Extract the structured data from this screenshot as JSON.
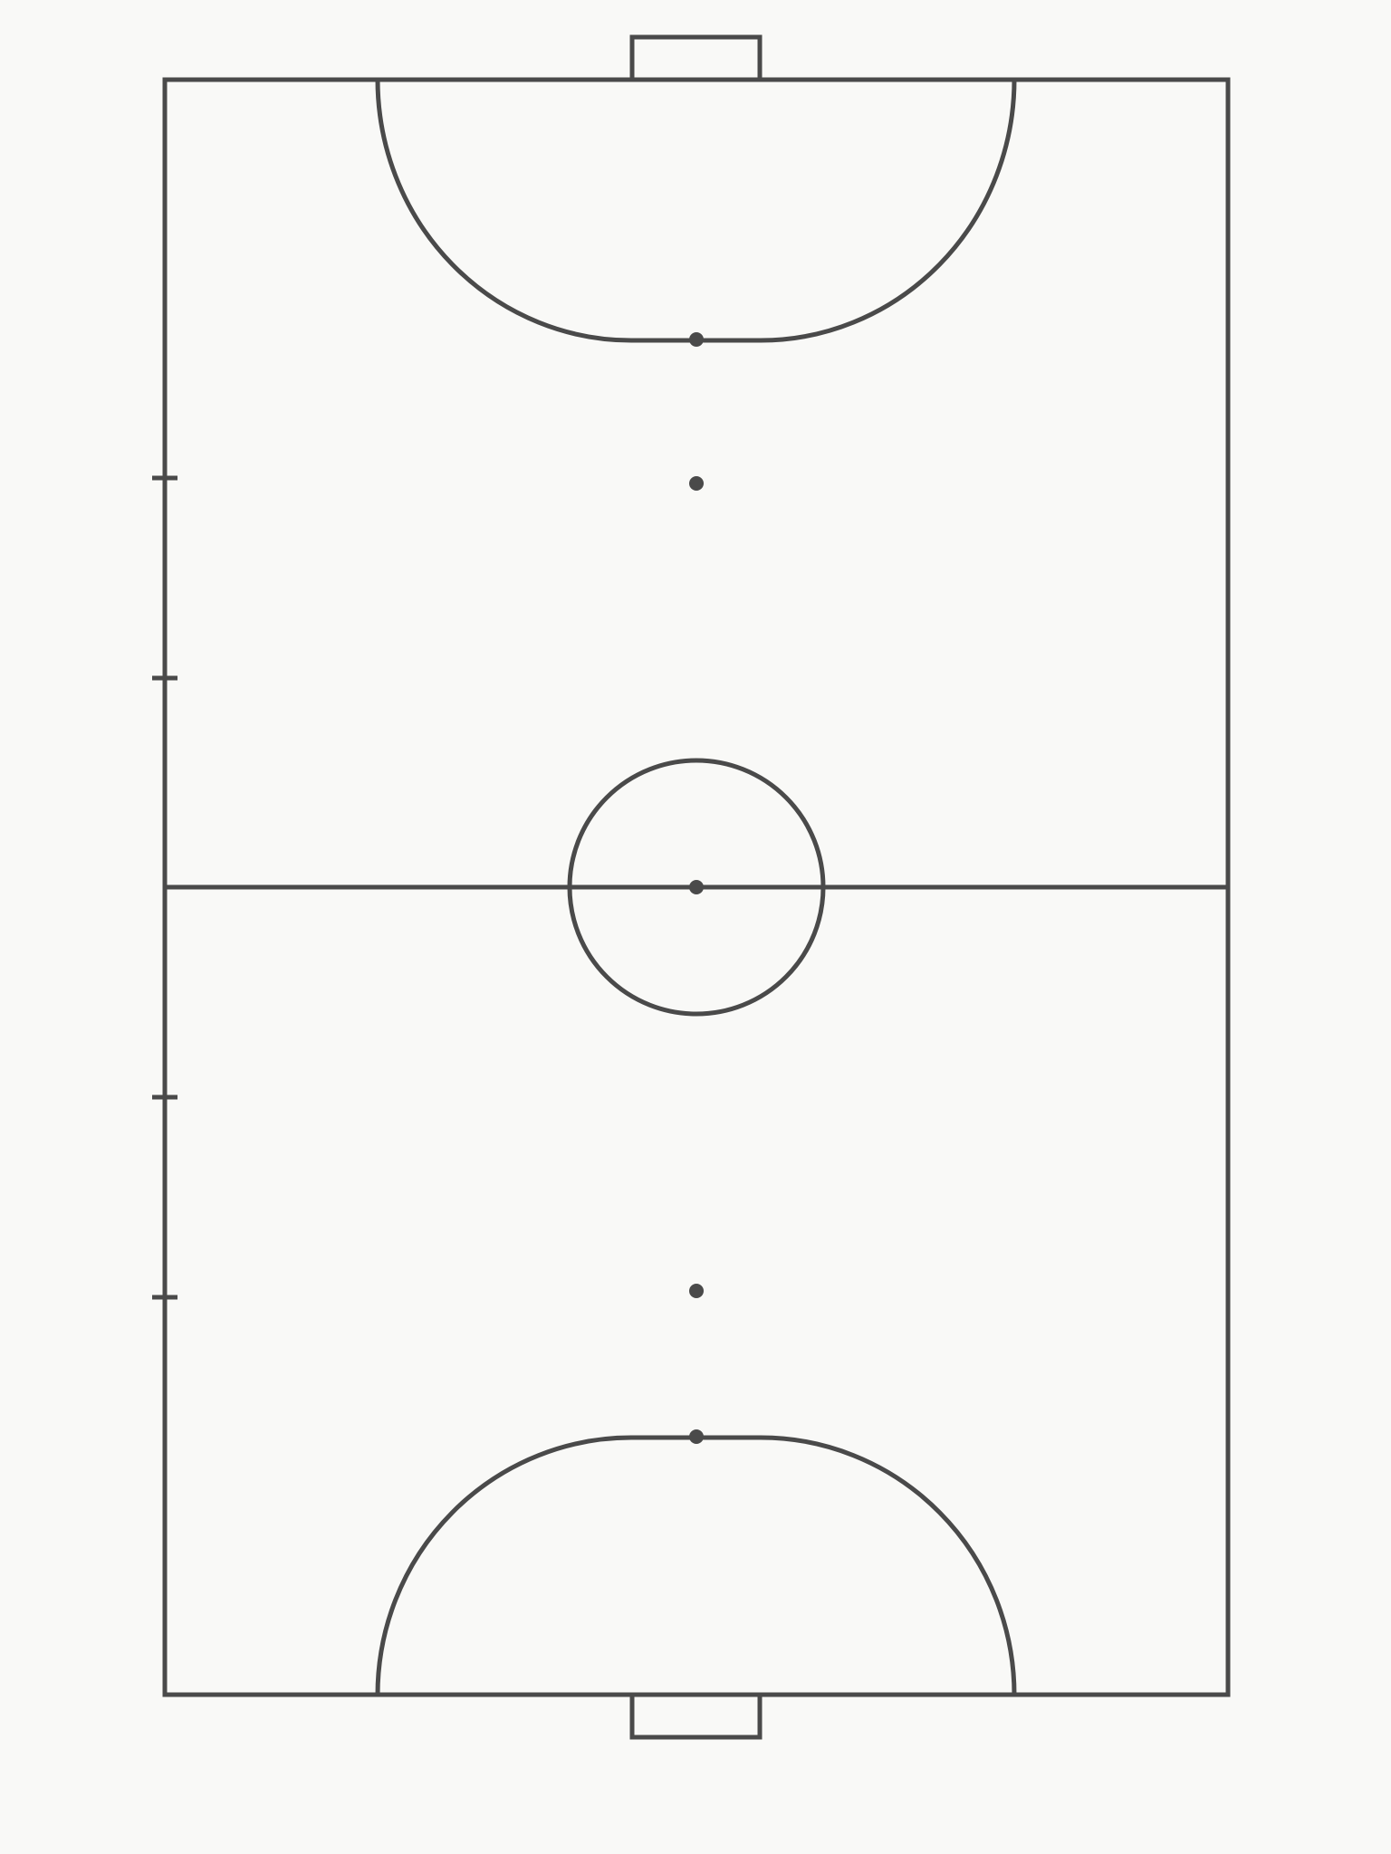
{
  "colors": {
    "background": "#f9f9f7",
    "line": "#4a4a4a"
  },
  "court": {
    "type": "futsal-court",
    "orientation": "vertical",
    "elements": [
      "boundary",
      "halfway-line",
      "center-circle",
      "center-spot",
      "top-goal",
      "bottom-goal",
      "top-penalty-area",
      "bottom-penalty-area",
      "top-penalty-spot",
      "bottom-penalty-spot",
      "top-second-penalty-spot",
      "bottom-second-penalty-spot",
      "substitution-zone-marks"
    ],
    "substitution_zone_marks_count": 4
  }
}
